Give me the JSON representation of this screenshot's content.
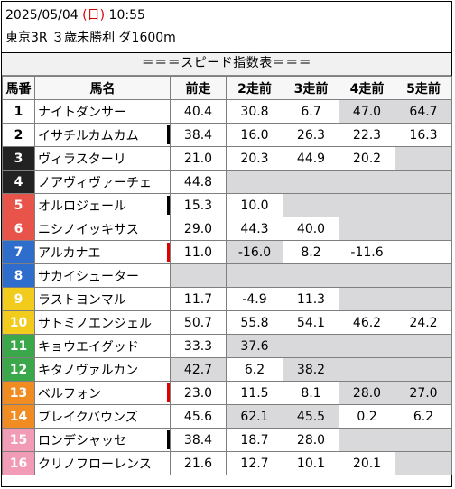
{
  "header": {
    "date": "2025/05/04",
    "dow_open": "(",
    "dow": "日",
    "dow_close": ")",
    "time": "10:55",
    "race": "東京3R ３歳未勝利 ダ1600m"
  },
  "banner": "＝＝＝スピード指数表＝＝＝",
  "columns": [
    "馬番",
    "馬名",
    "前走",
    "2走前",
    "3走前",
    "4走前",
    "5走前"
  ],
  "colors": {
    "frame1": "#ffffff",
    "frame2": "#222222",
    "frame3": "#e8534a",
    "frame4": "#2e6dcc",
    "frame5": "#f1cc1d",
    "frame6": "#3aa84a",
    "frame7": "#f08c22",
    "frame8": "#f29bb6",
    "empty_cell": "#d9d9dc",
    "marker_black": "#000000",
    "marker_red": "#e00000"
  },
  "rows": [
    {
      "no": "1",
      "name": "ナイトダンサー",
      "marker": "",
      "v": [
        "40.4",
        "30.8",
        "6.7",
        "47.0",
        "64.7"
      ],
      "empty": [
        false,
        false,
        false,
        true,
        true
      ]
    },
    {
      "no": "2",
      "name": "イサチルカムカム",
      "marker": "black",
      "v": [
        "38.4",
        "16.0",
        "26.3",
        "22.3",
        "16.3"
      ],
      "empty": [
        false,
        false,
        false,
        false,
        false
      ]
    },
    {
      "no": "3",
      "name": "ヴィラスターリ",
      "marker": "",
      "v": [
        "21.0",
        "20.3",
        "44.9",
        "20.2",
        ""
      ],
      "empty": [
        false,
        false,
        false,
        false,
        true
      ]
    },
    {
      "no": "4",
      "name": "ノアヴィヴァーチェ",
      "marker": "",
      "v": [
        "44.8",
        "",
        "",
        "",
        ""
      ],
      "empty": [
        false,
        true,
        true,
        true,
        true
      ]
    },
    {
      "no": "5",
      "name": "オルロジェール",
      "marker": "black",
      "v": [
        "15.3",
        "10.0",
        "",
        "",
        ""
      ],
      "empty": [
        false,
        false,
        true,
        true,
        true
      ]
    },
    {
      "no": "6",
      "name": "ニシノイッキサス",
      "marker": "",
      "v": [
        "29.0",
        "44.3",
        "40.0",
        "",
        ""
      ],
      "empty": [
        false,
        false,
        false,
        true,
        true
      ]
    },
    {
      "no": "7",
      "name": "アルカナエ",
      "marker": "red",
      "v": [
        "11.0",
        "-16.0",
        "8.2",
        "-11.6",
        ""
      ],
      "empty": [
        false,
        true,
        false,
        false,
        false
      ]
    },
    {
      "no": "8",
      "name": "サカイシューター",
      "marker": "",
      "v": [
        "",
        "",
        "",
        "",
        ""
      ],
      "empty": [
        true,
        true,
        true,
        true,
        true
      ]
    },
    {
      "no": "9",
      "name": "ラストヨンマル",
      "marker": "",
      "v": [
        "11.7",
        "-4.9",
        "11.3",
        "",
        ""
      ],
      "empty": [
        false,
        false,
        false,
        true,
        true
      ]
    },
    {
      "no": "10",
      "name": "サトミノエンジェル",
      "marker": "",
      "v": [
        "50.7",
        "55.8",
        "54.1",
        "46.2",
        "24.2"
      ],
      "empty": [
        false,
        false,
        false,
        false,
        false
      ]
    },
    {
      "no": "11",
      "name": "キョウエイグッド",
      "marker": "",
      "v": [
        "33.3",
        "37.6",
        "",
        "",
        ""
      ],
      "empty": [
        false,
        true,
        true,
        true,
        true
      ]
    },
    {
      "no": "12",
      "name": "キタノヴァルカン",
      "marker": "",
      "v": [
        "42.7",
        "6.2",
        "38.2",
        "",
        ""
      ],
      "empty": [
        true,
        false,
        true,
        true,
        true
      ]
    },
    {
      "no": "13",
      "name": "ベルフォン",
      "marker": "red",
      "v": [
        "23.0",
        "11.5",
        "8.1",
        "28.0",
        "27.0"
      ],
      "empty": [
        false,
        false,
        false,
        true,
        true
      ]
    },
    {
      "no": "14",
      "name": "ブレイクバウンズ",
      "marker": "",
      "v": [
        "45.6",
        "62.1",
        "45.5",
        "0.2",
        "6.2"
      ],
      "empty": [
        false,
        true,
        true,
        false,
        false
      ]
    },
    {
      "no": "15",
      "name": "ロンデシャッセ",
      "marker": "black",
      "v": [
        "38.4",
        "18.7",
        "28.0",
        "",
        ""
      ],
      "empty": [
        false,
        false,
        false,
        true,
        true
      ]
    },
    {
      "no": "16",
      "name": "クリノフローレンス",
      "marker": "",
      "v": [
        "21.6",
        "12.7",
        "10.1",
        "20.1",
        ""
      ],
      "empty": [
        false,
        false,
        false,
        false,
        true
      ]
    }
  ]
}
